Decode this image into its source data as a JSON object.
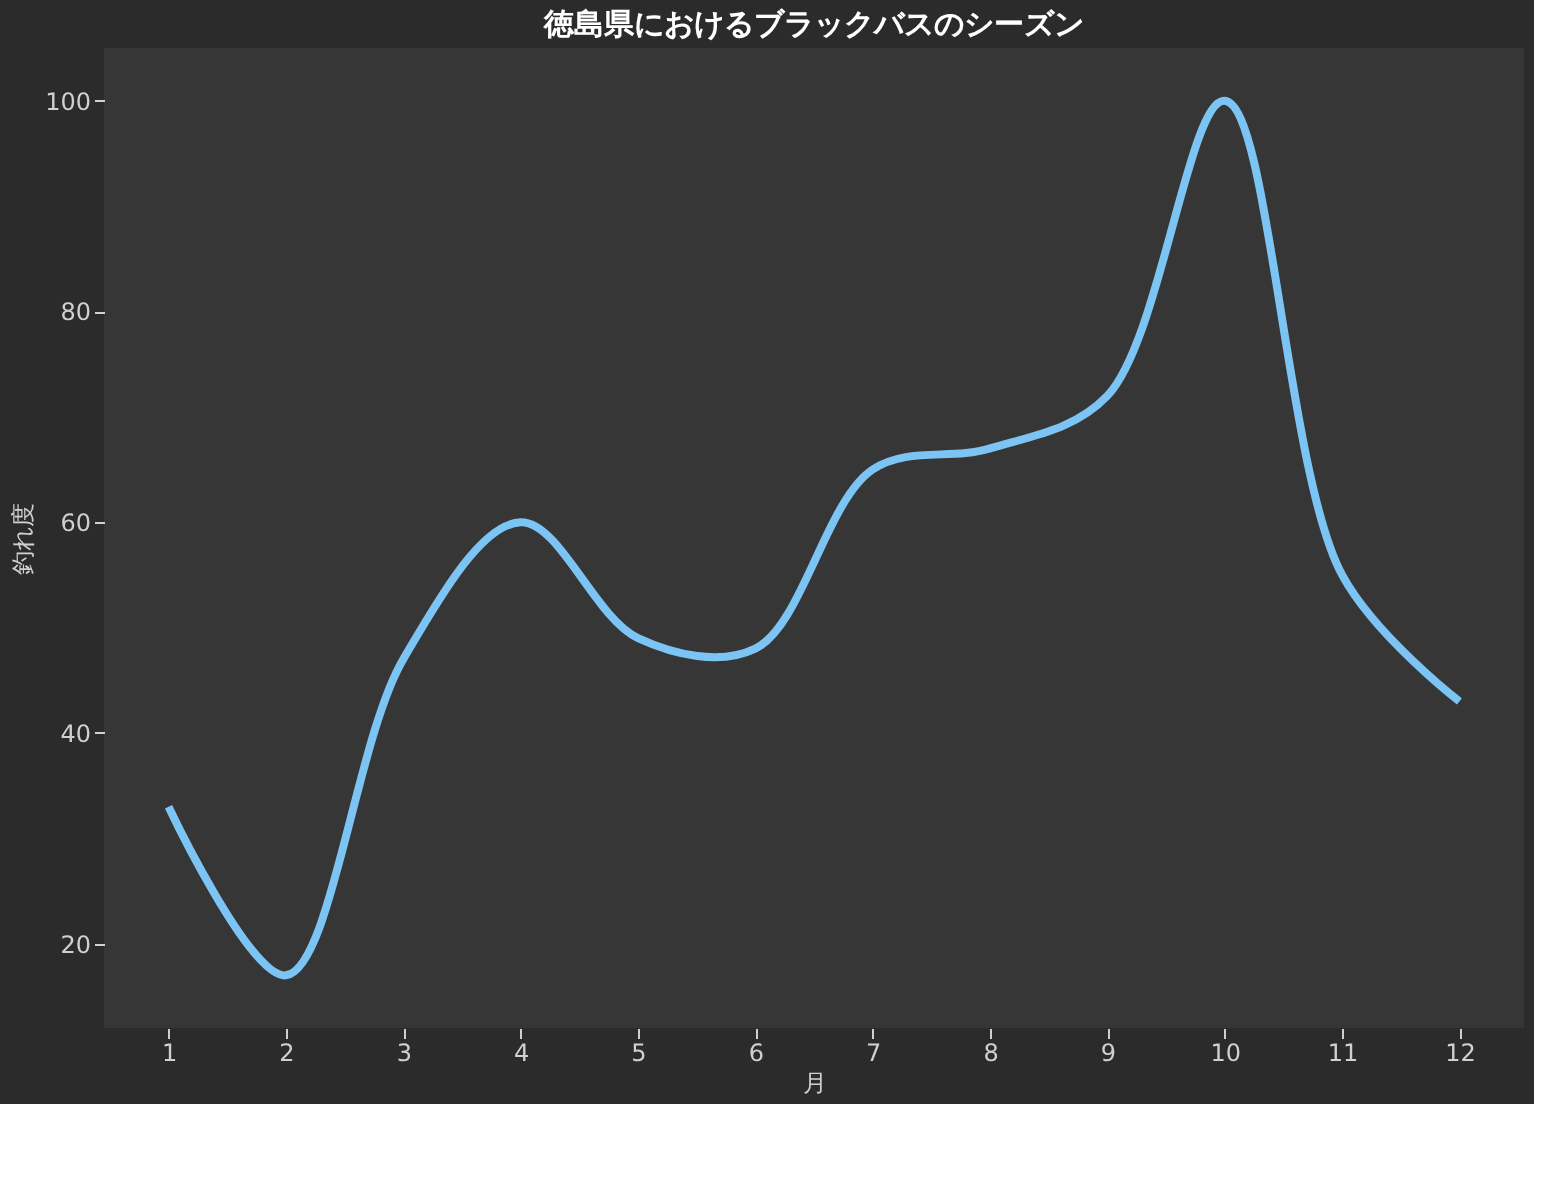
{
  "chart_data": {
    "type": "line",
    "title": "徳島県におけるブラックバスのシーズン",
    "xlabel": "月",
    "ylabel": "釣れ度",
    "x": [
      1,
      2,
      3,
      4,
      5,
      6,
      7,
      8,
      9,
      10,
      11,
      12
    ],
    "series": [
      {
        "color": "#7cc4f4",
        "values": [
          33,
          17,
          47,
          60,
          49,
          48,
          65,
          67,
          72,
          100,
          55,
          43
        ]
      }
    ],
    "xlim": [
      0.45,
      12.55
    ],
    "xticks": [
      1,
      2,
      3,
      4,
      5,
      6,
      7,
      8,
      9,
      10,
      11,
      12
    ],
    "ylim": [
      12,
      105
    ],
    "yticks": [
      20,
      40,
      60,
      80,
      100
    ],
    "grid": false,
    "legend": false,
    "marker": "none",
    "line_style": "solid"
  }
}
